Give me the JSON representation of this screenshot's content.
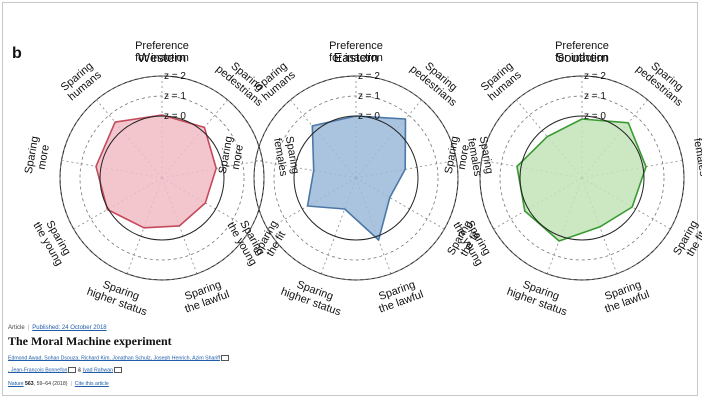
{
  "panel_label": "b",
  "chart_data": [
    {
      "type": "radar",
      "title": "Western",
      "axes": [
        "Preference for inaction",
        "Sparing pedestrians",
        "Sparing females",
        "Sparing the fit",
        "Sparing the lawful",
        "Sparing higher status",
        "Sparing the young",
        "Sparing more",
        "Sparing humans"
      ],
      "ring_labels": [
        "z = 2",
        "z = 1",
        "z = 0"
      ],
      "rings": [
        2,
        1,
        0
      ],
      "values": [
        0.05,
        0.2,
        -0.35,
        -0.6,
        -0.55,
        -0.45,
        0.05,
        0.25,
        0.55
      ],
      "color": "#c44a5c",
      "fill": "#f1bcc6"
    },
    {
      "type": "radar",
      "title": "Eastern",
      "axes": [
        "Preference for inaction",
        "Sparing pedestrians",
        "Sparing females",
        "Sparing the fit",
        "Sparing the lawful",
        "Sparing higher status",
        "Sparing the young",
        "Sparing more",
        "Sparing humans"
      ],
      "ring_labels": [
        "z = 2",
        "z = 1",
        "z = 0"
      ],
      "rings": [
        2,
        1,
        0
      ],
      "values": [
        0.0,
        0.75,
        -0.6,
        -1.15,
        0.2,
        -1.45,
        -0.3,
        -0.95,
        0.3
      ],
      "color": "#4c78a8",
      "fill": "#9bb9d8"
    },
    {
      "type": "radar",
      "title": "Southern",
      "axes": [
        "Preference for inaction",
        "Sparing pedestrians",
        "Sparing females",
        "Sparing the fit",
        "Sparing the lawful",
        "Sparing higher status",
        "Sparing the young",
        "Sparing more",
        "Sparing humans"
      ],
      "ring_labels": [
        "z = 2",
        "z = 1",
        "z = 0"
      ],
      "rings": [
        2,
        1,
        0
      ],
      "values": [
        -0.15,
        0.5,
        0.15,
        -0.2,
        -0.5,
        0.25,
        0.2,
        0.2,
        -0.4
      ],
      "color": "#3a9a32",
      "fill": "#c2e4b8"
    }
  ],
  "article": {
    "type": "Article",
    "published": "Published: 24 October 2018",
    "title": "The Moral Machine experiment",
    "authors": "Edmond Awad, Sohan Dsouza, Richard Kim, Jonathan Schulz, Joseph Henrich, Azim Shariff",
    "authors2_a": ", Jean-François Bonnefon",
    "authors2_and": " & ",
    "authors2_b": "Iyad Rahwan",
    "journal": "Nature",
    "volume": "563",
    "pages": ", 59–64 (2018)",
    "cite": "Cite this article"
  }
}
